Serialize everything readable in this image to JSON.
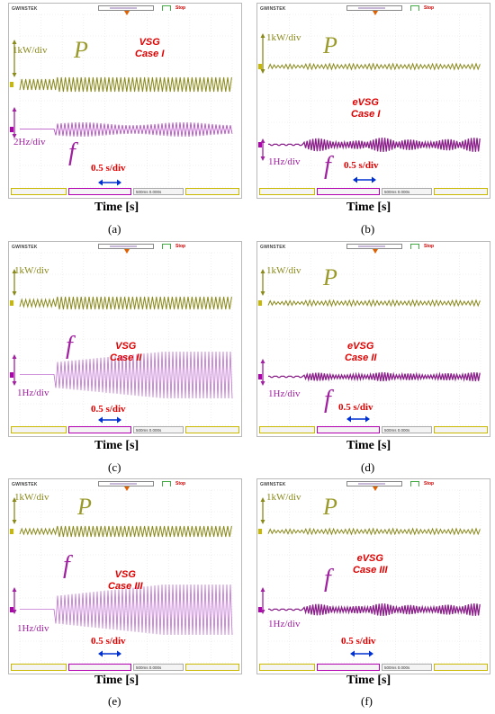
{
  "panels": [
    {
      "caption": "(a)",
      "controller": "VSG",
      "case": "Case I",
      "p_scale": "1kW/div",
      "f_scale": "2Hz/div",
      "p_symbol": "P",
      "f_symbol": "f",
      "time_scale": "0.5 s/div",
      "time_label": "Time [s]",
      "scope_brand": "GWINSTEK",
      "colors": {
        "power": "#8a8a1c",
        "freq": "#b040c0"
      }
    },
    {
      "caption": "(b)",
      "controller": "eVSG",
      "case": "Case I",
      "p_scale": "1kW/div",
      "f_scale": "1Hz/div",
      "p_symbol": "P",
      "f_symbol": "f",
      "time_scale": "0.5 s/div",
      "time_label": "Time [s]",
      "scope_brand": "GWINSTEK",
      "colors": {
        "power": "#8a8a1c",
        "freq": "#8a1f8a"
      }
    },
    {
      "caption": "(c)",
      "controller": "VSG",
      "case": "Case II",
      "p_scale": "1kW/div",
      "f_scale": "1Hz/div",
      "p_symbol": "P",
      "f_symbol": "f",
      "time_scale": "0.5 s/div",
      "time_label": "Time [s]",
      "scope_brand": "GWINSTEK",
      "colors": {
        "power": "#8a8a1c",
        "freq": "#c070d0"
      }
    },
    {
      "caption": "(d)",
      "controller": "eVSG",
      "case": "Case II",
      "p_scale": "1kW/div",
      "f_scale": "1Hz/div",
      "p_symbol": "P",
      "f_symbol": "f",
      "time_scale": "0.5 s/div",
      "time_label": "Time [s]",
      "scope_brand": "GWINSTEK",
      "colors": {
        "power": "#8a8a1c",
        "freq": "#8a1f8a"
      }
    },
    {
      "caption": "(e)",
      "controller": "VSG",
      "case": "Case III",
      "p_scale": "1kW/div",
      "f_scale": "1Hz/div",
      "p_symbol": "P",
      "f_symbol": "f",
      "time_scale": "0.5 s/div",
      "time_label": "Time [s]",
      "scope_brand": "GWINSTEK",
      "colors": {
        "power": "#8a8a1c",
        "freq": "#c070d0"
      }
    },
    {
      "caption": "(f)",
      "controller": "eVSG",
      "case": "Case III",
      "p_scale": "1kW/div",
      "f_scale": "1Hz/div",
      "p_symbol": "P",
      "f_symbol": "f",
      "time_scale": "0.5 s/div",
      "time_label": "Time [s]",
      "scope_brand": "GWINSTEK",
      "colors": {
        "power": "#8a8a1c",
        "freq": "#8a1f8a"
      }
    }
  ],
  "scope_ui": {
    "stop_label": "Stop",
    "timebase": "500ms",
    "trigger_readout": "0.000s"
  }
}
